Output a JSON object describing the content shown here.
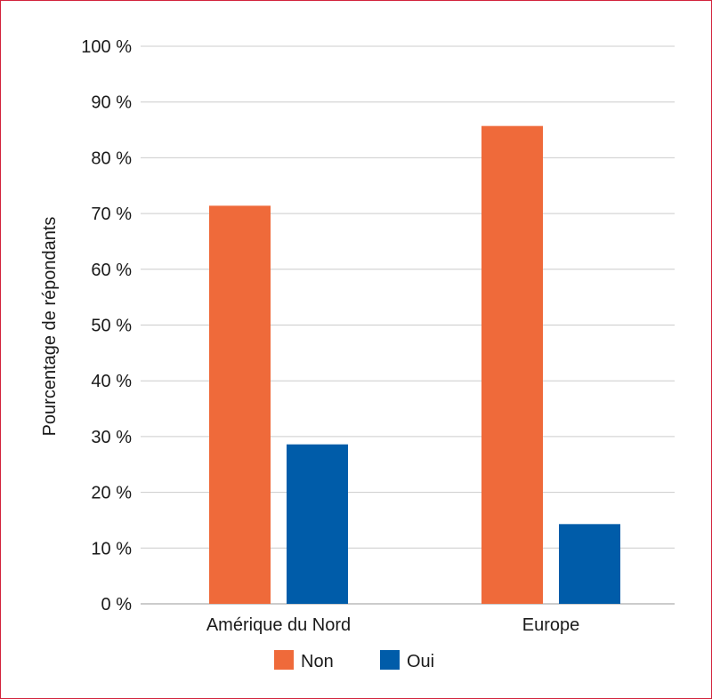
{
  "chart_data": {
    "type": "bar",
    "title": "",
    "xlabel": "",
    "ylabel": "Pourcentage de répondants",
    "categories": [
      "Amérique du Nord",
      "Europe"
    ],
    "series": [
      {
        "name": "Non",
        "color": "#ef6a3a",
        "values": [
          71.4,
          85.7
        ]
      },
      {
        "name": "Oui",
        "color": "#005ca9",
        "values": [
          28.6,
          14.3
        ]
      }
    ],
    "ylim": [
      0,
      100
    ],
    "yticks": [
      0,
      10,
      20,
      30,
      40,
      50,
      60,
      70,
      80,
      90,
      100
    ],
    "ytick_labels": [
      "0 %",
      "10 %",
      "20 %",
      "30 %",
      "40 %",
      "50 %",
      "60 %",
      "70 %",
      "80 %",
      "90 %",
      "100 %"
    ],
    "grid": true,
    "legend_position": "bottom-center",
    "colors": {
      "grid": "#cccccc",
      "axis": "#999999",
      "frame": "#d2233c"
    }
  }
}
